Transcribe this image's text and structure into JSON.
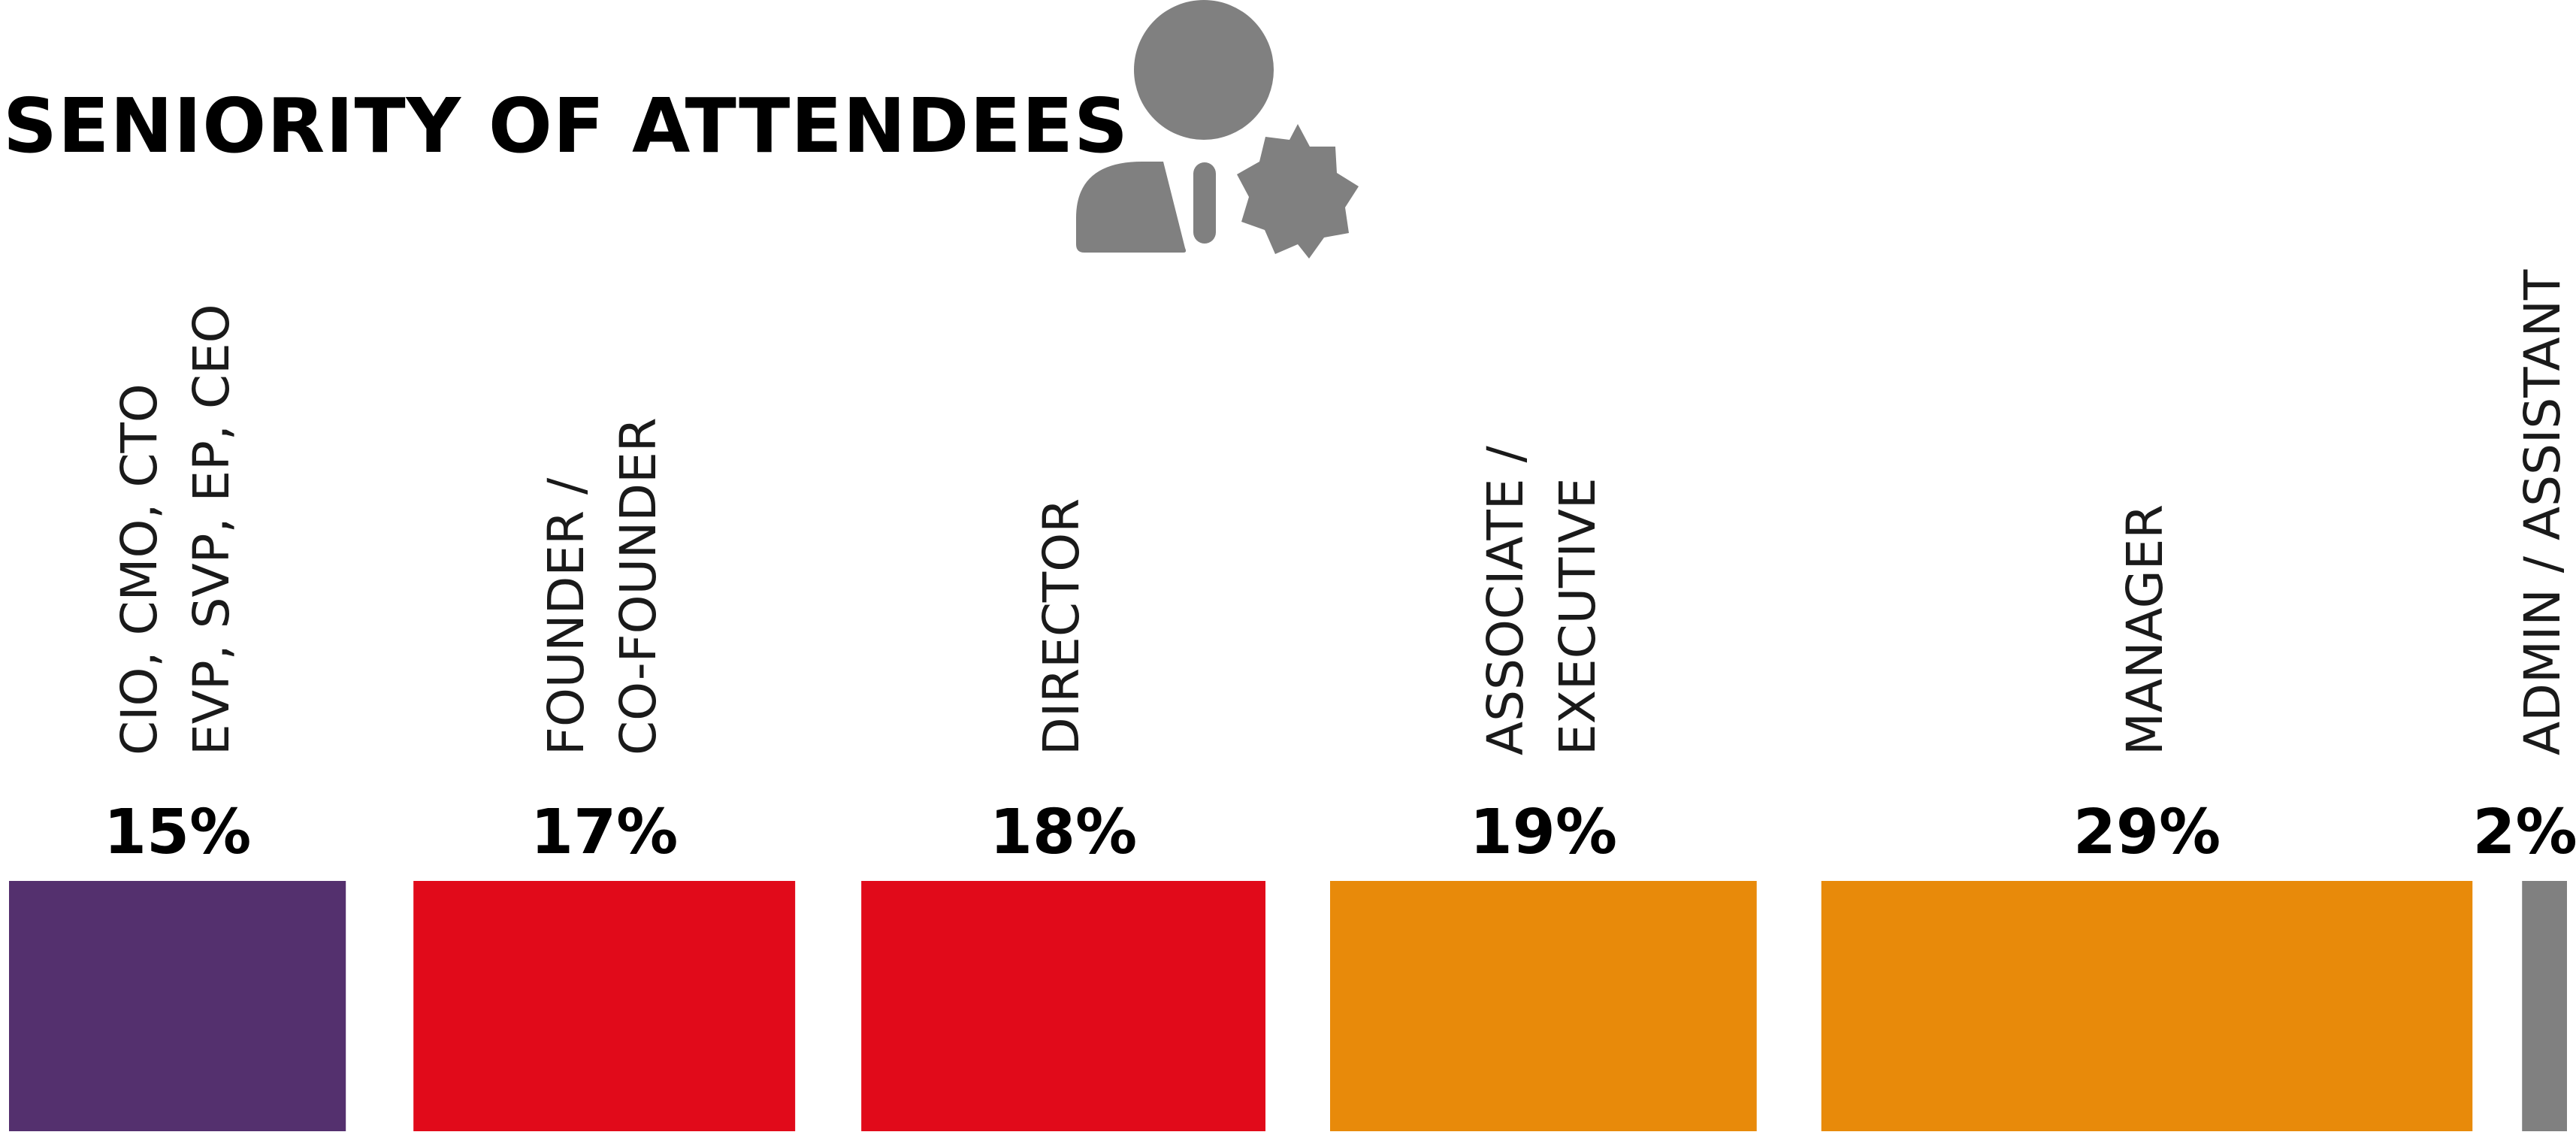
{
  "title": "SENIORITY OF ATTENDEES",
  "icon": "person-with-badge-icon",
  "colors": {
    "purple": "#54306E",
    "red": "#E10A1A",
    "orange": "#E88A0A",
    "gray": "#808080",
    "icon": "#808080"
  },
  "chart_data": {
    "type": "bar",
    "title": "SENIORITY OF ATTENDEES",
    "categories": [
      [
        "CIO, CMO, CTO",
        "EVP, SVP, EP, CEO"
      ],
      [
        "FOUNDER /",
        "CO-FOUNDER"
      ],
      [
        "DIRECTOR"
      ],
      [
        "ASSOCIATE /",
        "EXECUTIVE"
      ],
      [
        "MANAGER"
      ],
      [
        "ADMIN / ASSISTANT"
      ]
    ],
    "values": [
      15,
      17,
      18,
      19,
      29,
      2
    ],
    "value_labels": [
      "15%",
      "17%",
      "18%",
      "19%",
      "29%",
      "2%"
    ],
    "colors": [
      "#54306E",
      "#E10A1A",
      "#E10A1A",
      "#E88A0A",
      "#E88A0A",
      "#808080"
    ],
    "unit": "%",
    "orientation": "proportional-width bars",
    "xlabel": "",
    "ylabel": ""
  }
}
